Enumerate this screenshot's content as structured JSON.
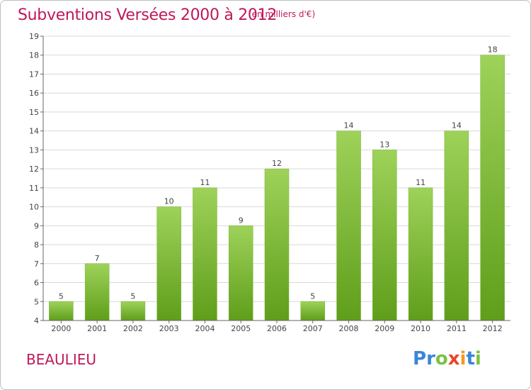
{
  "title": "Subventions Versées 2000 à 2012",
  "subtitle": "(en milliers d'€)",
  "commune": "BEAULIEU",
  "logo": {
    "text": "Proxiti",
    "letters": [
      {
        "ch": "P",
        "color": "#3a86d6"
      },
      {
        "ch": "r",
        "color": "#3a86d6"
      },
      {
        "ch": "o",
        "color": "#7cc242"
      },
      {
        "ch": "x",
        "color": "#e8452c"
      },
      {
        "ch": "i",
        "color": "#f29a1f"
      },
      {
        "ch": "t",
        "color": "#3a86d6"
      },
      {
        "ch": "i",
        "color": "#7cc242"
      }
    ]
  },
  "colors": {
    "accent": "#c0185a",
    "bar_top": "#9ed25a",
    "bar_bottom": "#5f9e1a",
    "grid": "#d9d9d9",
    "axis": "#666666"
  },
  "chart_data": {
    "type": "bar",
    "categories": [
      "2000",
      "2001",
      "2002",
      "2003",
      "2004",
      "2005",
      "2006",
      "2007",
      "2008",
      "2009",
      "2010",
      "2011",
      "2012"
    ],
    "values": [
      5,
      7,
      5,
      10,
      11,
      9,
      12,
      5,
      14,
      13,
      11,
      14,
      18
    ],
    "title": "Subventions Versées 2000 à 2012",
    "ylim": [
      4,
      19
    ],
    "yticks": [
      4,
      5,
      6,
      7,
      8,
      9,
      10,
      11,
      12,
      13,
      14,
      15,
      16,
      17,
      18,
      19
    ],
    "grid": true
  }
}
